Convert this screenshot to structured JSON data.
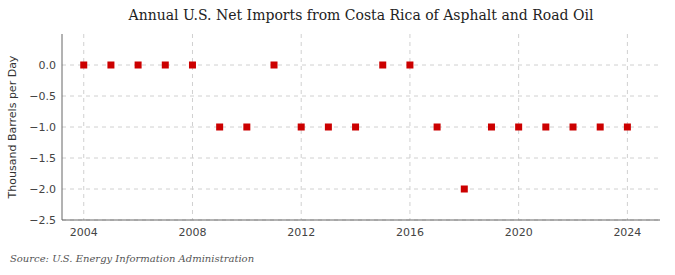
{
  "chart_data": {
    "type": "scatter",
    "title": "Annual U.S. Net Imports from Costa Rica of Asphalt and Road Oil",
    "ylabel": "Thousand Barrels per Day",
    "annotations": [
      "Source: U.S. Energy Information Administration"
    ],
    "x": [
      2004,
      2005,
      2006,
      2007,
      2008,
      2009,
      2010,
      2011,
      2012,
      2013,
      2014,
      2015,
      2016,
      2017,
      2018,
      2019,
      2020,
      2021,
      2022,
      2023,
      2024
    ],
    "values": [
      0,
      0,
      0,
      0,
      0,
      -1,
      -1,
      0,
      -1,
      -1,
      -1,
      0,
      0,
      -1,
      -2,
      -1,
      -1,
      -1,
      -1,
      -1,
      -1
    ],
    "xlim": [
      2003.2,
      2025.2
    ],
    "xticks": [
      2004,
      2008,
      2012,
      2016,
      2020,
      2024
    ],
    "ylim": [
      -2.5,
      0.5
    ],
    "yticks": [
      {
        "value": 0.0,
        "label": "0.0"
      },
      {
        "value": -0.5,
        "label": "−0.5"
      },
      {
        "value": -1.0,
        "label": "−1.0"
      },
      {
        "value": -1.5,
        "label": "−1.5"
      },
      {
        "value": -2.0,
        "label": "−2.0"
      },
      {
        "value": -2.5,
        "label": "−2.5"
      }
    ],
    "color": "#cc0000",
    "marker": "square",
    "grid": true
  }
}
